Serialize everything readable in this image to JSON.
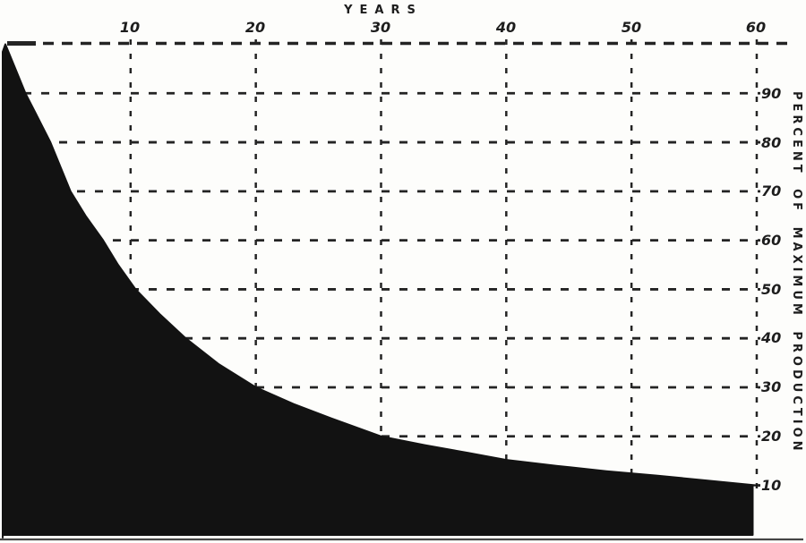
{
  "chart_data": {
    "type": "area",
    "title": "",
    "xlabel": "YEARS",
    "ylabel": "PERCENT OF MAXIMUM PRODUCTION",
    "x_ticks": [
      "10",
      "20",
      "30",
      "40",
      "50",
      "60"
    ],
    "y_ticks": [
      "90",
      "80",
      "70",
      "60",
      "50",
      "40",
      "30",
      "20",
      "10"
    ],
    "xlim": [
      0,
      60
    ],
    "ylim": [
      0,
      100
    ],
    "grid": "dashed",
    "legend": "none",
    "series": [
      {
        "name": "percent-of-maximum-production",
        "x": [
          0,
          0.8,
          1.6,
          2.5,
          3.6,
          4.4,
          5.2,
          6.4,
          7.8,
          9.0,
          10.4,
          12.3,
          14.4,
          17,
          20,
          23,
          26,
          30,
          33.5,
          37,
          40,
          44,
          48,
          52,
          56,
          60
        ],
        "y": [
          100,
          95,
          90,
          85.5,
          80,
          75,
          70,
          65,
          60,
          55,
          50,
          45,
          40,
          34.8,
          30,
          26.6,
          23.7,
          20,
          18.2,
          16.6,
          15.2,
          14,
          12.9,
          12,
          11,
          10
        ]
      }
    ],
    "colors": {
      "ink": "#242424",
      "area_fill": "#121212",
      "paper": "#fdfdfb",
      "bottom_rule": "#454545"
    }
  }
}
